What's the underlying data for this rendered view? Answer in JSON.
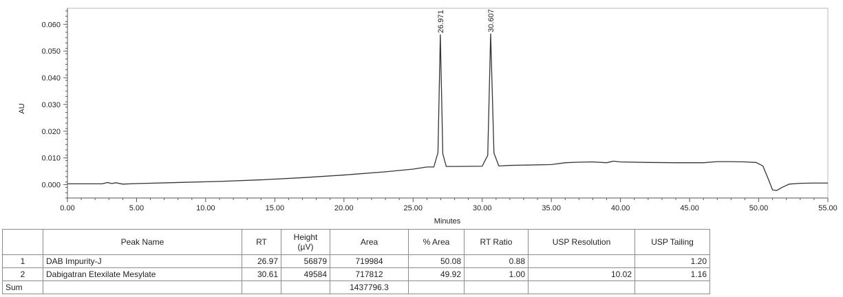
{
  "chart_data": {
    "type": "line",
    "xlabel": "Minutes",
    "ylabel": "AU",
    "xlim": [
      0,
      55
    ],
    "ylim": [
      -0.005,
      0.066
    ],
    "x_ticks": [
      "0.00",
      "5.00",
      "10.00",
      "15.00",
      "20.00",
      "25.00",
      "30.00",
      "35.00",
      "40.00",
      "45.00",
      "50.00",
      "55.00"
    ],
    "y_ticks": [
      "0.000",
      "0.010",
      "0.020",
      "0.030",
      "0.040",
      "0.050",
      "0.060"
    ],
    "grid": false,
    "series": [
      {
        "x": [
          0,
          2.5,
          2.9,
          3.2,
          3.5,
          4,
          5,
          8,
          11,
          14,
          17,
          20,
          23,
          25,
          26,
          26.5,
          26.8,
          26.97,
          27.15,
          27.4,
          28,
          30,
          30.4,
          30.61,
          30.85,
          31.2,
          32,
          35,
          36,
          37,
          38,
          39,
          39.5,
          40,
          42,
          44,
          46,
          47,
          48,
          49,
          49.8,
          50.3,
          50.7,
          51,
          51.3,
          51.7,
          52.2,
          53,
          54,
          55
        ],
        "y": [
          0.0003,
          0.0003,
          0.0008,
          0.0004,
          0.0007,
          0.0002,
          0.0004,
          0.0008,
          0.0012,
          0.0018,
          0.0026,
          0.0036,
          0.0048,
          0.0058,
          0.0066,
          0.0066,
          0.012,
          0.0562,
          0.0115,
          0.0068,
          0.0068,
          0.0069,
          0.011,
          0.0565,
          0.0118,
          0.007,
          0.0072,
          0.0075,
          0.0082,
          0.0084,
          0.0085,
          0.0082,
          0.0088,
          0.0085,
          0.0083,
          0.0082,
          0.0082,
          0.0086,
          0.0086,
          0.0085,
          0.0083,
          0.007,
          0.002,
          -0.002,
          -0.0022,
          -0.001,
          0.0002,
          0.0005,
          0.0006,
          0.0006
        ],
        "color": "#333333"
      }
    ],
    "annotations": [
      {
        "x": 26.97,
        "y": 0.0562,
        "text": "26.971"
      },
      {
        "x": 30.61,
        "y": 0.0565,
        "text": "30.607"
      }
    ]
  },
  "table": {
    "headers": [
      "",
      "Peak Name",
      "RT",
      "Height\n(µV)",
      "Area",
      "% Area",
      "RT Ratio",
      "USP Resolution",
      "USP Tailing"
    ],
    "rows": [
      [
        "1",
        "DAB Impurity-J",
        "26.97",
        "56879",
        "719984",
        "50.08",
        "0.88",
        "",
        "1.20"
      ],
      [
        "2",
        "Dabigatran Etexilate Mesylate",
        "30.61",
        "49584",
        "717812",
        "49.92",
        "1.00",
        "10.02",
        "1.16"
      ],
      [
        "Sum",
        "",
        "",
        "",
        "1437796.3",
        "",
        "",
        "",
        ""
      ]
    ]
  }
}
